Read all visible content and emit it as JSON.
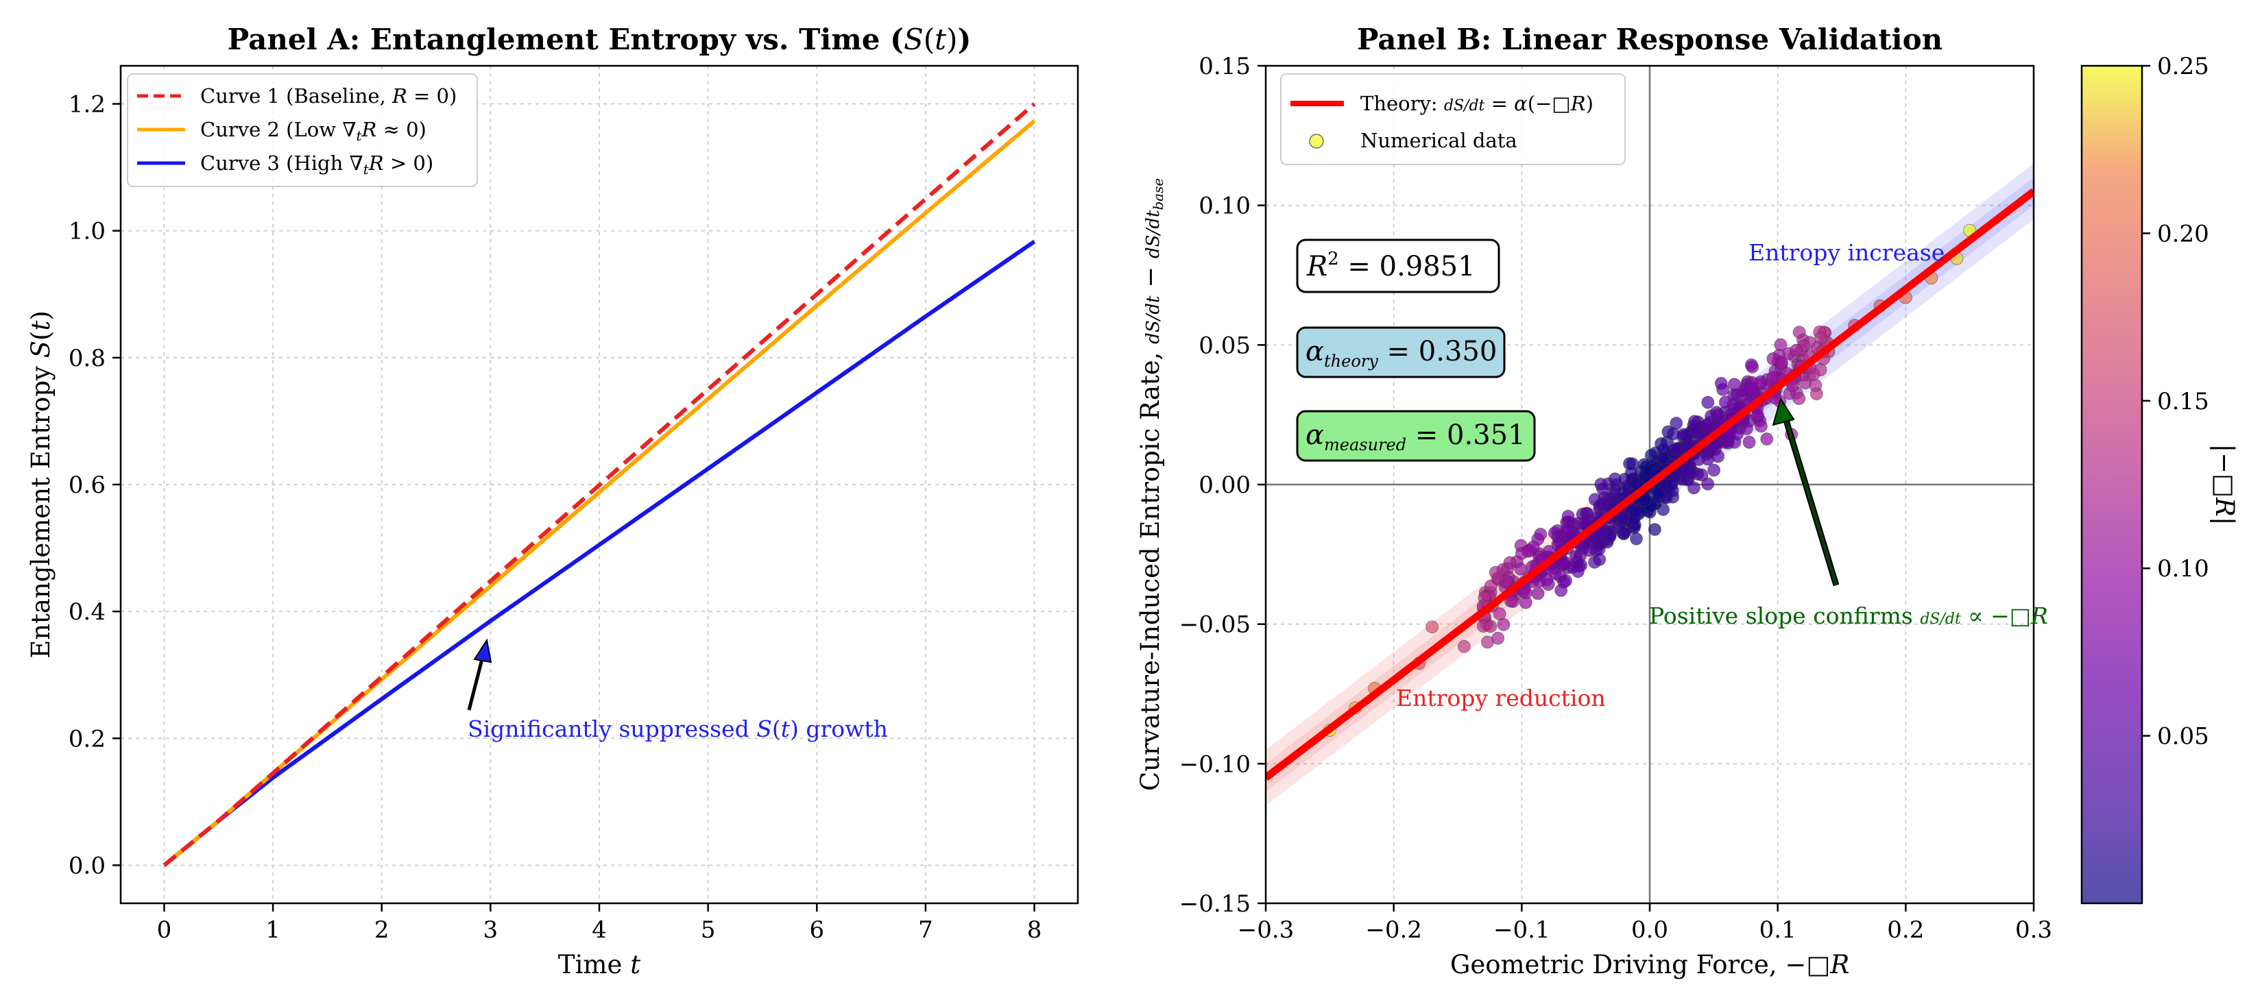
{
  "chart_data": [
    {
      "type": "line",
      "title": "Panel A: Entanglement Entropy vs. Time (S(t))",
      "xlabel": "Time t",
      "ylabel": "Entanglement Entropy S(t)",
      "xlim": [
        -0.4,
        8.4
      ],
      "ylim": [
        -0.06,
        1.26
      ],
      "xticks": [
        0,
        1,
        2,
        3,
        4,
        5,
        6,
        7,
        8
      ],
      "yticks": [
        0.0,
        0.2,
        0.4,
        0.6,
        0.8,
        1.0,
        1.2
      ],
      "ytick_labels": [
        "0.0",
        "0.2",
        "0.4",
        "0.6",
        "0.8",
        "1.0",
        "1.2"
      ],
      "grid": true,
      "legend_position": "top-left",
      "series": [
        {
          "name": "Curve 1 (Baseline, R = 0)",
          "color": "#ee2020",
          "style": "dashed",
          "x": [
            0,
            0.5,
            1,
            2,
            3,
            4,
            5,
            6,
            7,
            8
          ],
          "y": [
            0,
            0.07,
            0.145,
            0.297,
            0.448,
            0.599,
            0.75,
            0.9,
            1.05,
            1.2
          ]
        },
        {
          "name": "Curve 2 (Low ∇ₜR ≈ 0)",
          "color": "#ffa500",
          "style": "solid",
          "x": [
            0,
            0.5,
            1,
            2,
            3,
            4,
            5,
            6,
            7,
            8
          ],
          "y": [
            0,
            0.07,
            0.145,
            0.293,
            0.44,
            0.588,
            0.735,
            0.882,
            1.028,
            1.173
          ]
        },
        {
          "name": "Curve 3 (High ∇ₜR > 0)",
          "color": "#1515ee",
          "style": "solid",
          "x": [
            0,
            0.5,
            1,
            2,
            3,
            4,
            5,
            6,
            7,
            8
          ],
          "y": [
            0,
            0.07,
            0.138,
            0.262,
            0.385,
            0.505,
            0.625,
            0.745,
            0.865,
            0.983
          ]
        }
      ],
      "annotations": [
        {
          "text": "Significantly suppressed S(t) growth",
          "color": "#2020ee",
          "x": 2.82,
          "y": 0.21,
          "arrow_to": [
            3.0,
            0.36
          ]
        }
      ]
    },
    {
      "type": "scatter",
      "title": "Panel B: Linear Response Validation",
      "xlabel": "Geometric Driving Force, −□R",
      "ylabel": "Curvature-Induced Entropic Rate, dS/dt − dS/dt base",
      "xlim": [
        -0.3,
        0.3
      ],
      "ylim": [
        -0.15,
        0.15
      ],
      "xticks": [
        -0.3,
        -0.2,
        -0.1,
        0.0,
        0.1,
        0.2,
        0.3
      ],
      "xtick_labels": [
        "−0.3",
        "−0.2",
        "−0.1",
        "0.0",
        "0.1",
        "0.2",
        "0.3"
      ],
      "yticks": [
        -0.15,
        -0.1,
        -0.05,
        0.0,
        0.05,
        0.1,
        0.15
      ],
      "ytick_labels": [
        "−0.15",
        "−0.10",
        "−0.05",
        "0.00",
        "0.05",
        "0.10",
        "0.15"
      ],
      "grid": true,
      "legend_position": "top-left",
      "theory": {
        "name": "Theory: dS/dt = α(−□R)",
        "color": "#ff0000",
        "slope": 0.35,
        "x": [
          -0.3,
          0.3
        ]
      },
      "scatter_legend": "Numerical data",
      "scatter_series": {
        "color_variable": "|−□R|",
        "dense_cluster": {
          "x_range": [
            -0.13,
            0.14
          ],
          "y_relation": "y ≈ 0.351 x",
          "spread": 0.006
        },
        "outliers": [
          {
            "x": -0.25,
            "y": -0.088
          },
          {
            "x": -0.23,
            "y": -0.08
          },
          {
            "x": -0.215,
            "y": -0.073
          },
          {
            "x": -0.18,
            "y": -0.064
          },
          {
            "x": -0.17,
            "y": -0.051
          },
          {
            "x": -0.145,
            "y": -0.058
          },
          {
            "x": 0.16,
            "y": 0.057
          },
          {
            "x": 0.18,
            "y": 0.064
          },
          {
            "x": 0.2,
            "y": 0.067
          },
          {
            "x": 0.22,
            "y": 0.074
          },
          {
            "x": 0.24,
            "y": 0.081
          },
          {
            "x": 0.25,
            "y": 0.091
          }
        ]
      },
      "text_boxes": [
        {
          "text": "R² = 0.9851",
          "face": "#ffffff"
        },
        {
          "text": "α_theory = 0.350",
          "face": "#add8e6"
        },
        {
          "text": "α_measured = 0.351",
          "face": "#90ee90"
        }
      ],
      "annotations": [
        {
          "text": "Entropy increase",
          "color": "#2020ee"
        },
        {
          "text": "Entropy reduction",
          "color": "#ee2020"
        },
        {
          "text": "Positive slope confirms dS/dt ∝ −□R",
          "color": "#006400",
          "arrow_from": [
            0.145,
            -0.036
          ],
          "arrow_to": [
            0.1,
            0.032
          ]
        }
      ],
      "colorbar": {
        "label": "|−□R|",
        "range": [
          0.0,
          0.25
        ],
        "ticks": [
          0.05,
          0.1,
          0.15,
          0.2,
          0.25
        ],
        "tick_labels": [
          "0.05",
          "0.10",
          "0.15",
          "0.20",
          "0.25"
        ],
        "colormap": "plasma",
        "alpha": 0.7
      }
    }
  ]
}
